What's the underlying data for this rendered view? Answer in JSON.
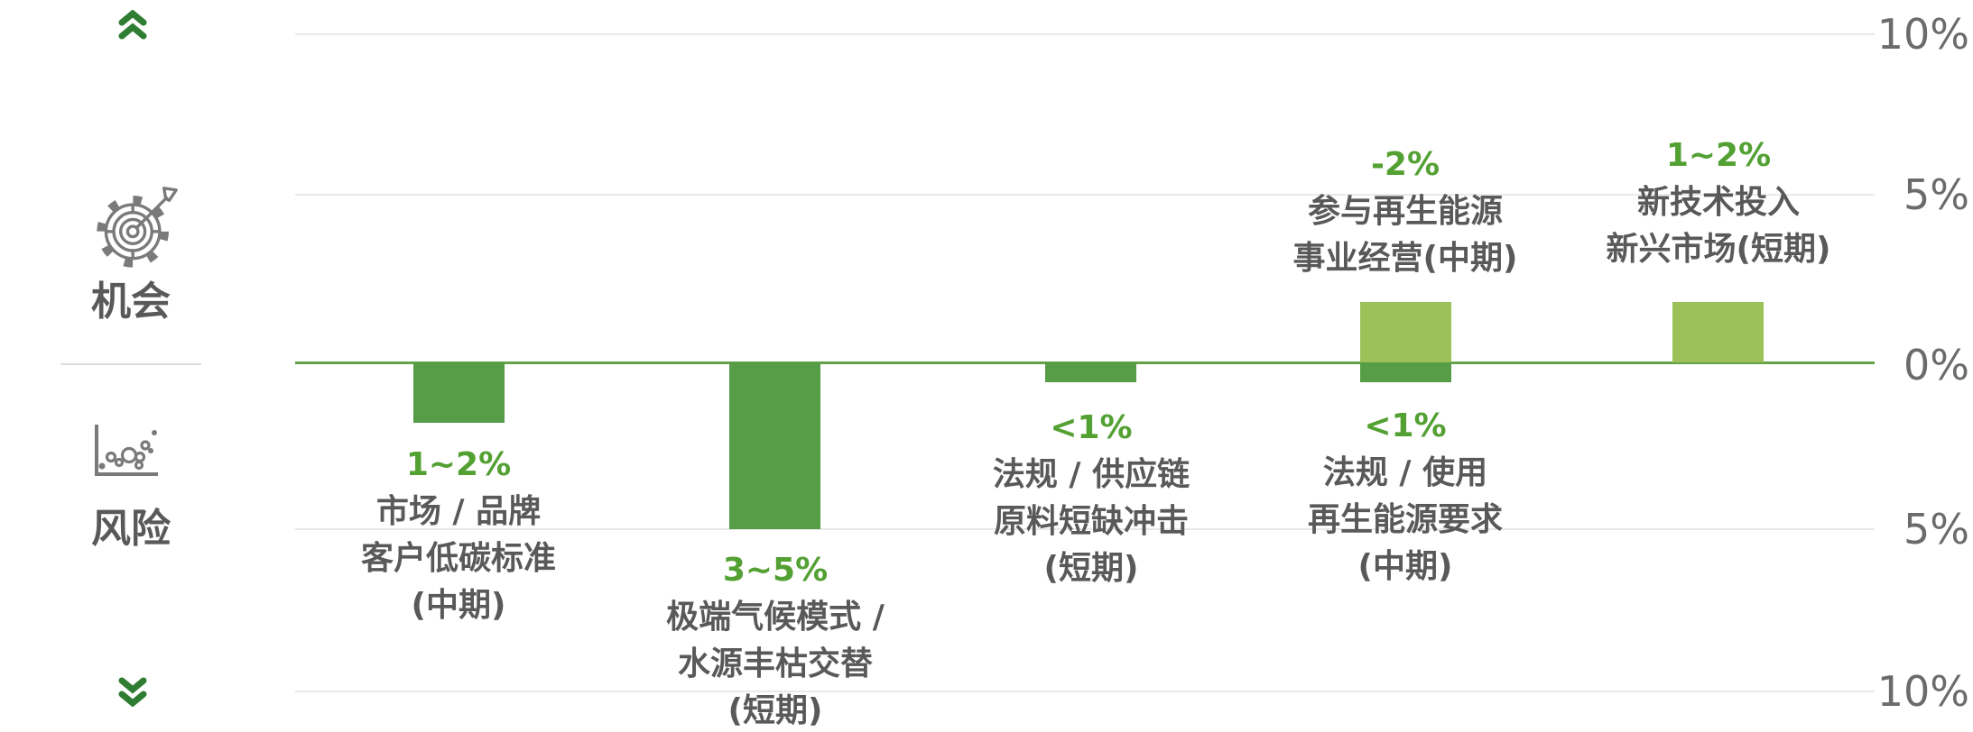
{
  "sidebar": {
    "opportunity_label": "机会",
    "risk_label": "风险",
    "up_icon": "double-chevron-up",
    "down_icon": "double-chevron-down",
    "opportunity_icon": "gear-target-arrow",
    "risk_icon": "scatter-chart"
  },
  "colors": {
    "bar_risk": "#579d48",
    "bar_opportunity": "#9bc158",
    "zero_line": "#62a347",
    "grid_line": "#e9e9e9",
    "green_text": "#53a033",
    "gray_text": "#595959",
    "axis_text": "#6b6b6b",
    "chevron_green": "#2e7d32",
    "icon_gray": "#7a7a7a"
  },
  "chart_data": {
    "type": "bar",
    "title": "",
    "xlabel": "",
    "ylabel": "",
    "unit": "%",
    "ylim": [
      -10,
      10
    ],
    "grid": true,
    "axis_side": "right",
    "y_axis": {
      "ticks": [
        "10%",
        "5%",
        "0%",
        "5%",
        "10%"
      ],
      "values": [
        10,
        5,
        0,
        -5,
        -10
      ]
    },
    "series": [
      {
        "name": "机会",
        "color": "#9bc158"
      },
      {
        "name": "风险",
        "color": "#579d48"
      }
    ],
    "categories": [
      {
        "risk": {
          "label": "1~2%",
          "value": -1.8,
          "lines": [
            "市场 / 品牌",
            "客户低碳标准",
            "(中期)"
          ]
        }
      },
      {
        "risk": {
          "label": "3~5%",
          "value": -5.0,
          "lines": [
            "极端气候模式 /",
            "水源丰枯交替",
            "(短期)"
          ]
        }
      },
      {
        "risk": {
          "label": "<1%",
          "value": -0.6,
          "lines": [
            "法规 / 供应链",
            "原料短缺冲击",
            "(短期)"
          ]
        }
      },
      {
        "opportunity": {
          "label": "-2%",
          "value": 1.8,
          "lines": [
            "参与再生能源",
            "事业经营(中期)"
          ]
        },
        "risk": {
          "label": "<1%",
          "value": -0.6,
          "lines": [
            "法规 / 使用",
            "再生能源要求",
            "(中期)"
          ]
        }
      },
      {
        "opportunity": {
          "label": "1~2%",
          "value": 1.8,
          "lines": [
            "新技术投入",
            "新兴市场(短期)"
          ]
        }
      }
    ],
    "bars": [
      {
        "category": 0,
        "series": "risk",
        "value": -1.8
      },
      {
        "category": 1,
        "series": "risk",
        "value": -5.0
      },
      {
        "category": 2,
        "series": "risk",
        "value": -0.6
      },
      {
        "category": 3,
        "series": "opportunity",
        "value": 1.8
      },
      {
        "category": 3,
        "series": "risk",
        "value": -0.6
      },
      {
        "category": 4,
        "series": "opportunity",
        "value": 1.8
      }
    ]
  }
}
